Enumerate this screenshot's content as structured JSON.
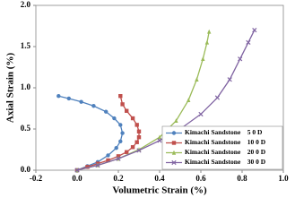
{
  "chart_data": {
    "type": "line",
    "x_label": "Volumetric Strain (%)",
    "y_label": "Axial Strain (%)",
    "xlim": [
      -0.2,
      1.0
    ],
    "xticks": [
      -0.2,
      {
        "value": 0,
        "label": "0.0"
      },
      0.2,
      0.4,
      0.6,
      0.8,
      {
        "value": 1.0,
        "label": "1.0"
      }
    ],
    "ylim": [
      0,
      2.0
    ],
    "yticks": [
      {
        "value": 0,
        "label": "0.0"
      },
      0.5,
      {
        "value": 1.0,
        "label": "1.0"
      },
      1.5,
      {
        "value": 2.0,
        "label": "2.0"
      }
    ],
    "legend": "lower right",
    "series": [
      {
        "name": "Kimachi Sandstone　5 0 D",
        "color": "#4f81bd",
        "marker": "circle",
        "x": [
          0,
          0.05,
          0.1,
          0.15,
          0.19,
          0.21,
          0.22,
          0.21,
          0.18,
          0.14,
          0.08,
          0.02,
          -0.04,
          -0.09
        ],
        "values": [
          0,
          0.05,
          0.1,
          0.18,
          0.27,
          0.35,
          0.45,
          0.55,
          0.63,
          0.71,
          0.78,
          0.83,
          0.87,
          0.9
        ]
      },
      {
        "name": "Kimachi Sandstone　10 0 D",
        "color": "#c0504d",
        "marker": "square",
        "x": [
          0,
          0.05,
          0.1,
          0.15,
          0.2,
          0.24,
          0.27,
          0.29,
          0.3,
          0.3,
          0.29,
          0.27,
          0.24,
          0.22,
          0.21
        ],
        "values": [
          0,
          0.04,
          0.08,
          0.12,
          0.17,
          0.22,
          0.28,
          0.34,
          0.4,
          0.47,
          0.55,
          0.63,
          0.72,
          0.8,
          0.9
        ]
      },
      {
        "name": "Kimachi Sandstone　20 0 D",
        "color": "#9bbb59",
        "marker": "triangle",
        "x": [
          0,
          0.1,
          0.2,
          0.3,
          0.4,
          0.48,
          0.54,
          0.58,
          0.61,
          0.63,
          0.64
        ],
        "values": [
          0,
          0.06,
          0.14,
          0.25,
          0.4,
          0.6,
          0.85,
          1.1,
          1.35,
          1.55,
          1.68
        ]
      },
      {
        "name": "Kimachi Sandstone　30 0 D",
        "color": "#8064a2",
        "marker": "x",
        "x": [
          0,
          0.1,
          0.2,
          0.3,
          0.4,
          0.5,
          0.6,
          0.68,
          0.74,
          0.79,
          0.83,
          0.86
        ],
        "values": [
          0,
          0.06,
          0.14,
          0.24,
          0.36,
          0.5,
          0.68,
          0.88,
          1.1,
          1.35,
          1.55,
          1.7
        ]
      }
    ]
  }
}
